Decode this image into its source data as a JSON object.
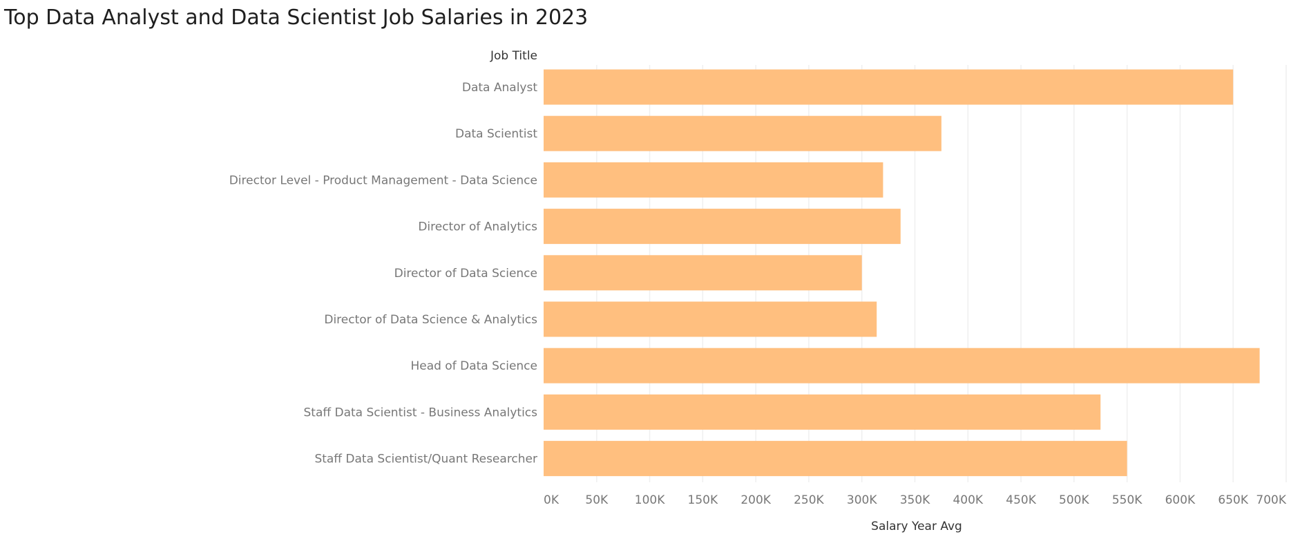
{
  "chart_data": {
    "type": "bar",
    "orientation": "horizontal",
    "title": "Top Data Analyst and Data Scientist Job Salaries in 2023",
    "category_axis_label": "Job Title",
    "value_axis_label": "Salary Year Avg",
    "categories": [
      "Data Analyst",
      "Data Scientist",
      "Director Level - Product Management - Data Science",
      "Director of Analytics",
      "Director of Data Science",
      "Director of Data Science & Analytics",
      "Head of Data Science",
      "Staff Data Scientist - Business Analytics",
      "Staff Data Scientist/Quant Researcher"
    ],
    "values": [
      650000,
      375000,
      320000,
      336500,
      300000,
      314000,
      675000,
      525000,
      550000
    ],
    "xlim": [
      0,
      700000
    ],
    "ticks": [
      0,
      50000,
      100000,
      150000,
      200000,
      250000,
      300000,
      350000,
      400000,
      450000,
      500000,
      550000,
      600000,
      650000,
      700000
    ],
    "tick_labels": [
      "0K",
      "50K",
      "100K",
      "150K",
      "200K",
      "250K",
      "300K",
      "350K",
      "400K",
      "450K",
      "500K",
      "550K",
      "600K",
      "650K",
      "700K"
    ],
    "grid": true,
    "legend": "none",
    "colors": {
      "bar": "#ffbf7f",
      "grid": "#efefef",
      "tick_text": "#777777",
      "axis_title_text": "#333333",
      "title_text": "#1f1f1f"
    }
  }
}
